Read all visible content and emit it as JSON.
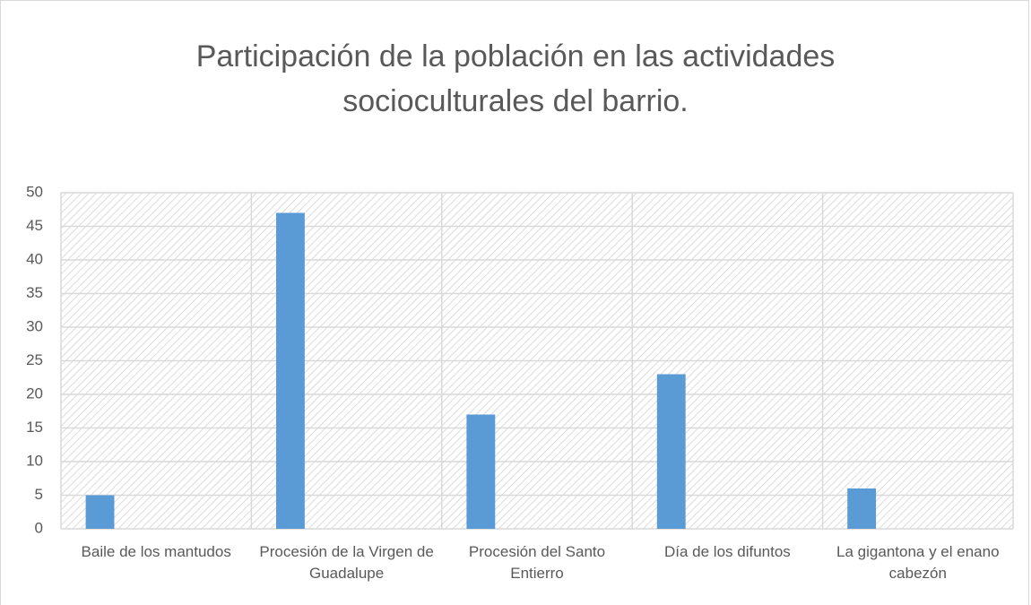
{
  "chart_data": {
    "type": "bar",
    "title": "Participación de la población en las actividades socioculturales del barrio.",
    "categories": [
      "Baile de los mantudos",
      "Procesión de la Virgen de Guadalupe",
      "Procesión del Santo Entierro",
      "Día de los difuntos",
      "La gigantona y el enano cabezón"
    ],
    "values": [
      5,
      47,
      17,
      23,
      6
    ],
    "color": "#5b9bd5",
    "ylim": [
      0,
      50
    ],
    "yticks": [
      0,
      5,
      10,
      15,
      20,
      25,
      30,
      35,
      40,
      45,
      50
    ],
    "grid": true
  }
}
